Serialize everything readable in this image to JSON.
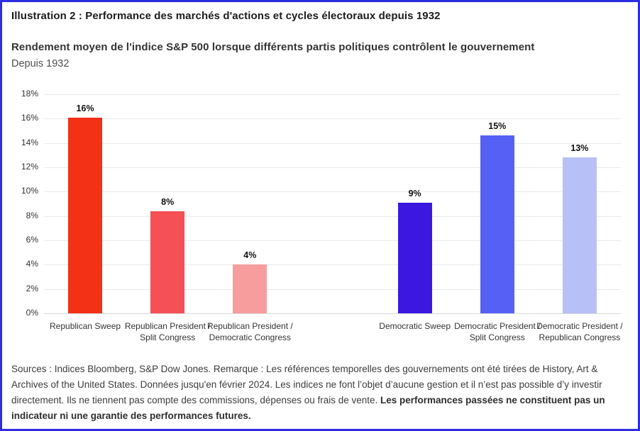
{
  "header": {
    "title": "Illustration 2 : Performance des marchés d'actions et cycles électoraux depuis 1932",
    "subtitle": "Rendement moyen de l'indice S&P 500 lorsque différents partis politiques contrôlent le gouvernement",
    "period": "Depuis 1932"
  },
  "chart_data": {
    "type": "bar",
    "title": "Rendement moyen de l'indice S&P 500 lorsque différents partis politiques contrôlent le gouvernement",
    "subtitle": "Depuis 1932",
    "categories": [
      "Republican Sweep",
      "Republican President /\nSplit Congress",
      "Republican President /\nDemocratic Congress",
      "Democratic Sweep",
      "Democratic President /\nSplit Congress",
      "Democratic President /\nRepublican Congress"
    ],
    "values": [
      16.1,
      8.4,
      4.0,
      9.1,
      14.6,
      12.8
    ],
    "bar_labels": [
      "16%",
      "8%",
      "4%",
      "9%",
      "15%",
      "13%"
    ],
    "colors": [
      "#f33117",
      "#f45055",
      "#f79d9d",
      "#3b17e0",
      "#5561f5",
      "#b8c0f8"
    ],
    "slots": [
      0,
      1,
      2,
      4,
      5,
      6
    ],
    "num_slots": 7,
    "xlabel": "",
    "ylabel": "",
    "ylim": [
      0,
      18
    ],
    "ytick_step": 2,
    "ytick_suffix": "%",
    "grid": true,
    "legend": "none"
  },
  "footer": {
    "text": "Sources : Indices Bloomberg, S&P Dow Jones. Remarque : Les références temporelles des gouvernements ont été tirées de History, Art & Archives of the United States. Données jusqu'en février 2024. Les indices ne font l’objet d’aucune gestion et il n’est pas possible d’y investir directement. Ils ne tiennent pas compte des commissions, dépenses ou frais de vente. ",
    "bold_text": "Les performances passées ne constituent pas un indicateur ni une garantie des performances futures."
  },
  "colors": {
    "border": "#2d2de0",
    "gridline": "#eaeaec",
    "axis_line": "#d9d9dd",
    "title_text": "#1c1c1c",
    "body_text": "#3c3c3c"
  }
}
